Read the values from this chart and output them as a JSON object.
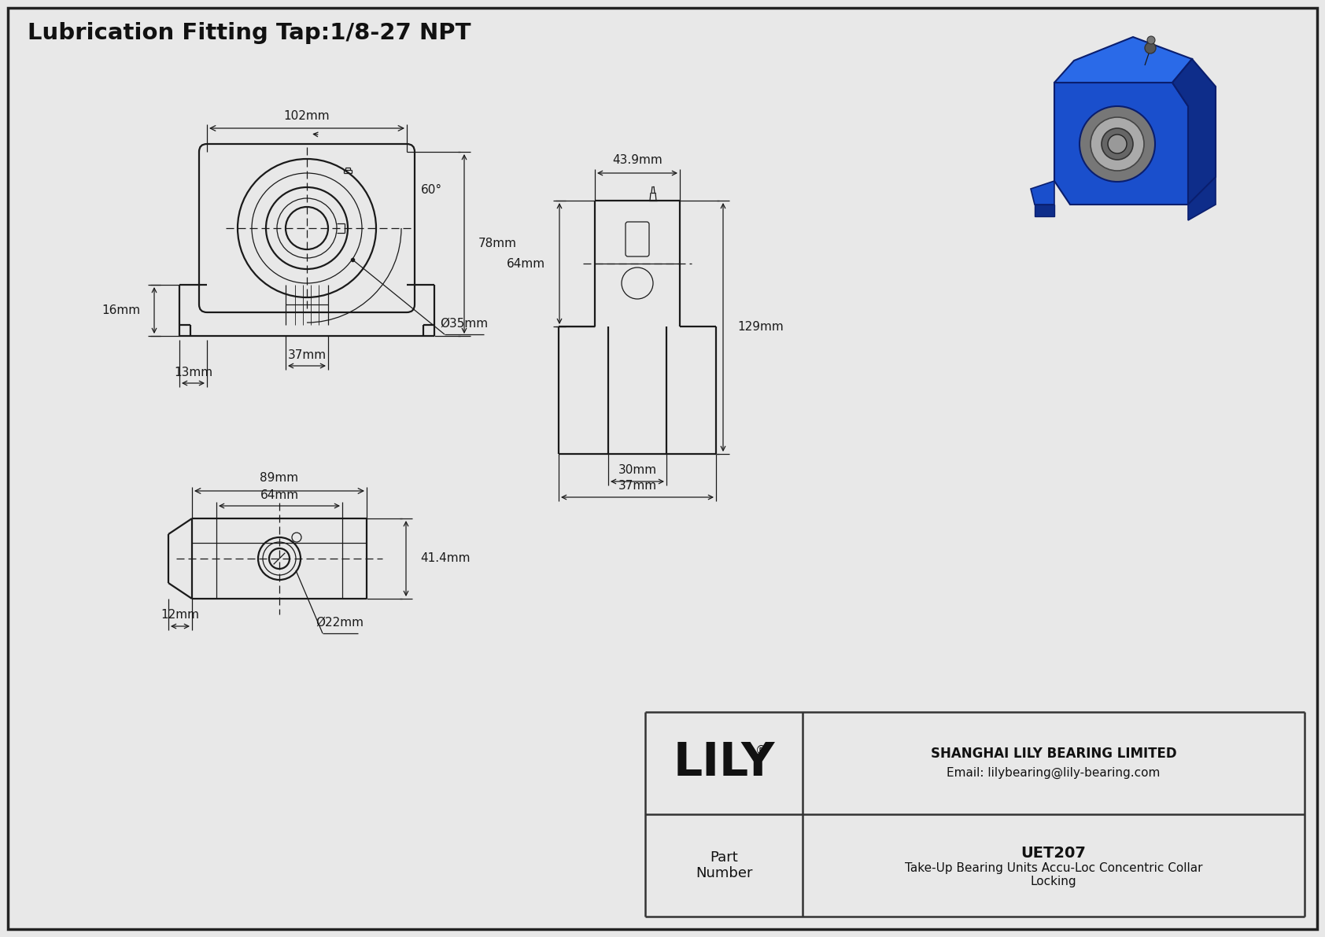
{
  "title": "Lubrication Fitting Tap:1/8-27 NPT",
  "bg_color": "#e8e8e8",
  "line_color": "#1a1a1a",
  "dim_color": "#1a1a1a",
  "border_color": "#222222",
  "company": "SHANGHAI LILY BEARING LIMITED",
  "email": "Email: lilybearing@lily-bearing.com",
  "part_label": "Part\nNumber",
  "part_number": "UET207",
  "part_desc": "Take-Up Bearing Units Accu-Loc Concentric Collar\nLocking",
  "lily_text": "LILY",
  "dims": {
    "top_width": "102mm",
    "angle": "60°",
    "left_h": "16mm",
    "right_h": "78mm",
    "bottom_w1": "37mm",
    "bore_dia": "Ø35mm",
    "bot_view_w1": "89mm",
    "bot_view_w2": "64mm",
    "bot_view_h": "41.4mm",
    "bot_bore": "Ø22mm",
    "left_offset": "12mm",
    "bot_left_offset": "13mm",
    "side_w": "43.9mm",
    "side_h1": "64mm",
    "side_h2": "129mm",
    "side_w2": "30mm",
    "side_w3": "37mm"
  }
}
